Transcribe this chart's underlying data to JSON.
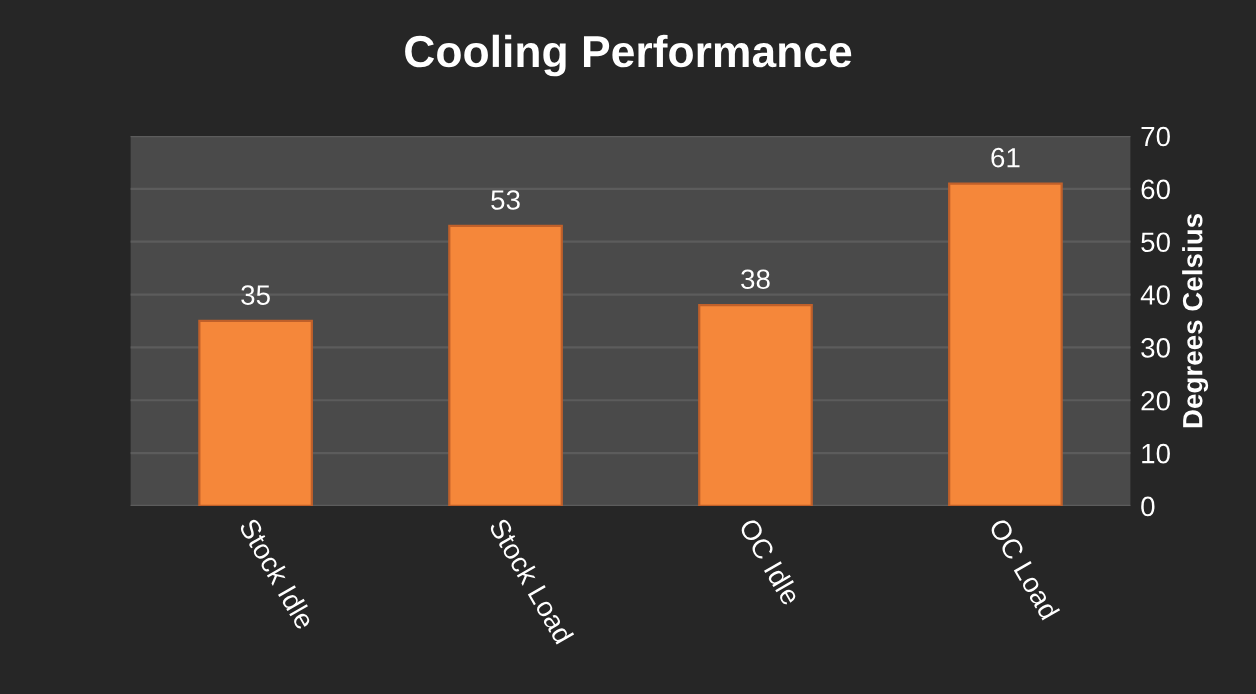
{
  "chart_data": {
    "type": "bar",
    "title": "Cooling Performance",
    "categories": [
      "Stock Idle",
      "Stock Load",
      "OC Idle",
      "OC Load"
    ],
    "values": [
      35,
      53,
      38,
      61
    ],
    "color": "#f5873a",
    "ylabel": "Degrees Celsius",
    "ylim": [
      0,
      70
    ],
    "yticks": [
      0,
      10,
      20,
      30,
      40,
      50,
      60,
      70
    ],
    "grid": "y",
    "data_labels": true
  }
}
